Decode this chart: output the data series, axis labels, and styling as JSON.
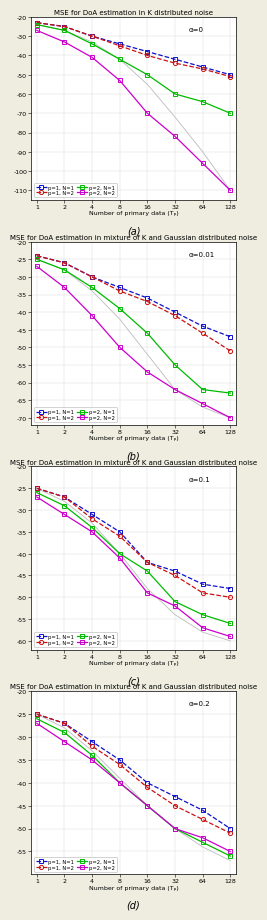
{
  "panels": [
    {
      "title": "MSE for DoA estimation in K distributed noise",
      "annotation": "α=0",
      "xlabel": "Number of primary data (Tₚ)",
      "ylim": [
        -115,
        -20
      ],
      "yticks": [
        -110,
        -100,
        -90,
        -80,
        -70,
        -60,
        -50,
        -40,
        -30,
        -20
      ],
      "label": "(a)",
      "xvals": [
        1,
        2,
        4,
        8,
        16,
        32,
        64,
        128
      ],
      "crb": [
        -24,
        -27,
        -33,
        -42,
        -55,
        -72,
        -90,
        -110
      ],
      "series": [
        {
          "label": "p=1, N=1",
          "color": "#1111cc",
          "style": "--",
          "marker": "s",
          "data": [
            -23,
            -25,
            -30,
            -34,
            -38,
            -42,
            -46,
            -50
          ]
        },
        {
          "label": "p=1, N=2",
          "color": "#cc1111",
          "style": "--",
          "marker": "o",
          "data": [
            -23,
            -25,
            -30,
            -35,
            -40,
            -44,
            -47,
            -51
          ]
        },
        {
          "label": "p=2, N=1",
          "color": "#00bb00",
          "style": "-",
          "marker": "s",
          "data": [
            -24,
            -27,
            -34,
            -42,
            -50,
            -60,
            -64,
            -70
          ]
        },
        {
          "label": "p=2, N=2",
          "color": "#cc00cc",
          "style": "-",
          "marker": "s",
          "data": [
            -27,
            -33,
            -41,
            -53,
            -70,
            -82,
            -96,
            -110
          ]
        }
      ]
    },
    {
      "title": "MSE for DoA estimation in mixture of K and Gaussian distributed noise",
      "annotation": "α=0.01",
      "xlabel": "Number of primary data (Tₚ)",
      "ylim": [
        -72,
        -20
      ],
      "yticks": [
        -70,
        -65,
        -60,
        -55,
        -50,
        -45,
        -40,
        -35,
        -30,
        -25,
        -20
      ],
      "label": "(b)",
      "xvals": [
        1,
        2,
        4,
        8,
        16,
        32,
        64,
        128
      ],
      "crb": [
        -25,
        -28,
        -34,
        -42,
        -52,
        -62,
        -67,
        -70
      ],
      "series": [
        {
          "label": "p=1, N=1",
          "color": "#1111cc",
          "style": "--",
          "marker": "s",
          "data": [
            -24,
            -26,
            -30,
            -33,
            -36,
            -40,
            -44,
            -47
          ]
        },
        {
          "label": "p=1, N=2",
          "color": "#cc1111",
          "style": "--",
          "marker": "o",
          "data": [
            -24,
            -26,
            -30,
            -34,
            -37,
            -41,
            -46,
            -51
          ]
        },
        {
          "label": "p=2, N=1",
          "color": "#00bb00",
          "style": "-",
          "marker": "s",
          "data": [
            -25,
            -28,
            -33,
            -39,
            -46,
            -55,
            -62,
            -63
          ]
        },
        {
          "label": "p=2, N=2",
          "color": "#cc00cc",
          "style": "-",
          "marker": "s",
          "data": [
            -27,
            -33,
            -41,
            -50,
            -57,
            -62,
            -66,
            -70
          ]
        }
      ]
    },
    {
      "title": "MSE for DoA estimation in mixture of K and Gaussian distributed noise",
      "annotation": "α=0.1",
      "xlabel": "Number of primary data (Tₚ)",
      "ylim": [
        -62,
        -20
      ],
      "yticks": [
        -60,
        -55,
        -50,
        -45,
        -40,
        -35,
        -30,
        -25,
        -20
      ],
      "label": "(c)",
      "xvals": [
        1,
        2,
        4,
        8,
        16,
        32,
        64,
        128
      ],
      "crb": [
        -25,
        -28,
        -33,
        -40,
        -48,
        -54,
        -58,
        -60
      ],
      "series": [
        {
          "label": "p=1, N=1",
          "color": "#1111cc",
          "style": "--",
          "marker": "s",
          "data": [
            -25,
            -27,
            -31,
            -35,
            -42,
            -44,
            -47,
            -48
          ]
        },
        {
          "label": "p=1, N=2",
          "color": "#cc1111",
          "style": "--",
          "marker": "o",
          "data": [
            -25,
            -27,
            -32,
            -36,
            -42,
            -45,
            -49,
            -50
          ]
        },
        {
          "label": "p=2, N=1",
          "color": "#00bb00",
          "style": "-",
          "marker": "s",
          "data": [
            -26,
            -29,
            -34,
            -40,
            -44,
            -51,
            -54,
            -56
          ]
        },
        {
          "label": "p=2, N=2",
          "color": "#cc00cc",
          "style": "-",
          "marker": "s",
          "data": [
            -27,
            -31,
            -35,
            -41,
            -49,
            -52,
            -57,
            -59
          ]
        }
      ]
    },
    {
      "title": "MSE for DoA estimation in mixture of K and Gaussian distributed noise",
      "annotation": "α=0.2",
      "xlabel": "Number of primary data (Tₚ)",
      "ylim": [
        -60,
        -20
      ],
      "yticks": [
        -55,
        -50,
        -45,
        -40,
        -35,
        -30,
        -25,
        -20
      ],
      "label": "(d)",
      "xvals": [
        1,
        2,
        4,
        8,
        16,
        32,
        64,
        128
      ],
      "crb": [
        -25,
        -28,
        -33,
        -39,
        -45,
        -50,
        -54,
        -57
      ],
      "series": [
        {
          "label": "p=1, N=1",
          "color": "#1111cc",
          "style": "--",
          "marker": "s",
          "data": [
            -25,
            -27,
            -31,
            -35,
            -40,
            -43,
            -46,
            -50
          ]
        },
        {
          "label": "p=1, N=2",
          "color": "#cc1111",
          "style": "--",
          "marker": "o",
          "data": [
            -25,
            -27,
            -32,
            -36,
            -41,
            -45,
            -48,
            -51
          ]
        },
        {
          "label": "p=2, N=1",
          "color": "#00bb00",
          "style": "-",
          "marker": "s",
          "data": [
            -26,
            -29,
            -34,
            -40,
            -45,
            -50,
            -53,
            -56
          ]
        },
        {
          "label": "p=2, N=2",
          "color": "#cc00cc",
          "style": "-",
          "marker": "s",
          "data": [
            -27,
            -31,
            -35,
            -40,
            -45,
            -50,
            -52,
            -55
          ]
        }
      ]
    }
  ],
  "bg_color": "#eeede0",
  "plot_bg": "#ffffff",
  "title_fontsize": 5.0,
  "label_fontsize": 4.5,
  "tick_fontsize": 4.5,
  "legend_fontsize": 3.8,
  "annotation_fontsize": 5.0,
  "linewidth": 0.9,
  "markersize": 3.0
}
